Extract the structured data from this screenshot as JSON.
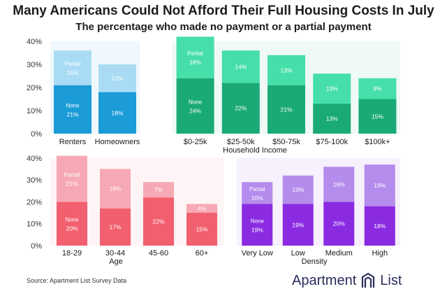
{
  "header": {
    "title": "Many Americans Could Not Afford Their Full Housing Costs In July",
    "subtitle": "The percentage who made no payment or a partial payment"
  },
  "footer": {
    "source": "Source: Apartment List Survey Data",
    "brand_left": "Apartment",
    "brand_right": "List",
    "brand_logo_icon": "apartment-list-logo-icon"
  },
  "chart_data": [
    {
      "type": "bar",
      "stacked": true,
      "title": "",
      "xlabel": "",
      "ylabel": "",
      "ylim": [
        0,
        40
      ],
      "yticks": [
        "0%",
        "10%",
        "20%",
        "30%",
        "40%"
      ],
      "categories": [
        "Renters",
        "Homeowners"
      ],
      "series": [
        {
          "name": "None",
          "values": [
            21,
            18
          ],
          "labels": [
            "21%",
            "18%"
          ],
          "color": "#1b9bd7"
        },
        {
          "name": "Partial",
          "values": [
            15,
            12
          ],
          "labels": [
            "15%",
            "12%"
          ],
          "color": "#a9dcf4"
        }
      ],
      "panel_bg": "#1b9bd7"
    },
    {
      "type": "bar",
      "stacked": true,
      "title": "",
      "xlabel": "Household Income",
      "ylabel": "",
      "ylim": [
        0,
        40
      ],
      "categories": [
        "$0-25k",
        "$25-50k",
        "$50-75k",
        "$75-100k",
        "$100k+"
      ],
      "series": [
        {
          "name": "None",
          "values": [
            24,
            22,
            21,
            13,
            15
          ],
          "labels": [
            "24%",
            "22%",
            "21%",
            "13%",
            "15%"
          ],
          "color": "#1aaa76"
        },
        {
          "name": "Partial",
          "values": [
            18,
            14,
            13,
            13,
            9
          ],
          "labels": [
            "18%",
            "14%",
            "13%",
            "13%",
            "9%"
          ],
          "color": "#46dfa9"
        }
      ],
      "panel_bg": "#1aaa76"
    },
    {
      "type": "bar",
      "stacked": true,
      "title": "",
      "xlabel": "Age",
      "ylabel": "",
      "ylim": [
        0,
        40
      ],
      "yticks": [
        "0%",
        "10%",
        "20%",
        "30%",
        "40%"
      ],
      "categories": [
        "18-29",
        "30-44",
        "45-60",
        "60+"
      ],
      "series": [
        {
          "name": "None",
          "values": [
            20,
            17,
            22,
            15
          ],
          "labels": [
            "20%",
            "17%",
            "22%",
            "15%"
          ],
          "color": "#f25f6e"
        },
        {
          "name": "Partial",
          "values": [
            21,
            18,
            7,
            4
          ],
          "labels": [
            "21%",
            "18%",
            "7%",
            "4%"
          ],
          "color": "#f6a9b4"
        }
      ],
      "panel_bg": "#f25f6e"
    },
    {
      "type": "bar",
      "stacked": true,
      "title": "",
      "xlabel": "Density",
      "ylabel": "",
      "ylim": [
        0,
        40
      ],
      "categories": [
        "Very Low",
        "Low",
        "Medium",
        "High"
      ],
      "series": [
        {
          "name": "None",
          "values": [
            19,
            19,
            20,
            18
          ],
          "labels": [
            "19%",
            "19%",
            "20%",
            "18%"
          ],
          "color": "#8a2be2"
        },
        {
          "name": "Partial",
          "values": [
            10,
            13,
            16,
            19
          ],
          "labels": [
            "10%",
            "13%",
            "16%",
            "19%"
          ],
          "color": "#b48cec"
        }
      ],
      "panel_bg": "#8a2be2"
    }
  ]
}
